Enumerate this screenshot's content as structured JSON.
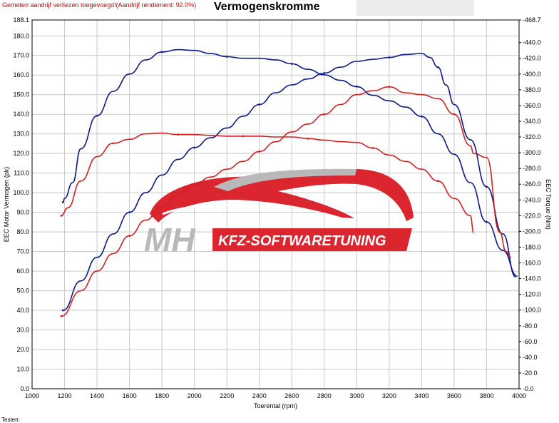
{
  "header": {
    "notice": "Gemeten aandrijf verliezen toegevoegd!(Aandrijf rendement: 92.0%)",
    "title": "Vermogenskromme"
  },
  "footer": {
    "text": "Testen:"
  },
  "logo": {
    "mark": "MH",
    "text": "KFZ-SOFTWARETUNING"
  },
  "colors": {
    "stock": "#d42020",
    "tuned": "#0a1a8c",
    "grid": "#c8c8c8",
    "logo_red": "#d8141e",
    "logo_grey": "#b4b4b4"
  },
  "chart_data": {
    "type": "line",
    "title": "Vermogenskromme",
    "xlabel": "Toerental (rpm)",
    "ylabel": "EEC Motor Vermogen (pk)",
    "y2label": "EEC Torque (Nm)",
    "xlim": [
      1000,
      4000
    ],
    "ylim": [
      0,
      188.1
    ],
    "y2lim": [
      0,
      468.7
    ],
    "grid": true,
    "x_ticks": [
      "1000",
      "1200",
      "1400",
      "1600",
      "1800",
      "2000",
      "2200",
      "2400",
      "2600",
      "2800",
      "3000",
      "3200",
      "3400",
      "3600",
      "3800",
      "4000"
    ],
    "y_ticks": [
      "0.0",
      "10.0",
      "20.0",
      "30.0",
      "40.0",
      "50.0",
      "60.0",
      "70.0",
      "80.0",
      "90.0",
      "100.0",
      "110.0",
      "120.0",
      "130.0",
      "140.0",
      "150.0",
      "160.0",
      "170.0",
      "180.0",
      "188.1"
    ],
    "y2_ticks": [
      "-0.0",
      "-20.0",
      "-40.0",
      "-60.0",
      "-80.0",
      "-100.0",
      "-120.0",
      "-140.0",
      "-160.0",
      "-180.0",
      "-200.0",
      "-220.0",
      "-240.0",
      "-260.0",
      "-280.0",
      "-300.0",
      "-320.0",
      "-340.0",
      "-360.0",
      "-380.0",
      "-400.0",
      "-420.0",
      "-440.0",
      "-468.7"
    ],
    "y2_tick_values": [
      0,
      20,
      40,
      60,
      80,
      100,
      120,
      140,
      160,
      180,
      200,
      220,
      240,
      260,
      280,
      300,
      320,
      340,
      360,
      380,
      400,
      420,
      440,
      468.7
    ],
    "series": [
      {
        "color": "#0a1a8c",
        "axis": "left",
        "points": [
          [
            1190,
            40
          ],
          [
            1300,
            55
          ],
          [
            1400,
            67
          ],
          [
            1500,
            79
          ],
          [
            1600,
            90
          ],
          [
            1700,
            100
          ],
          [
            1800,
            109
          ],
          [
            1900,
            117
          ],
          [
            2000,
            123
          ],
          [
            2100,
            128
          ],
          [
            2200,
            133
          ],
          [
            2300,
            139
          ],
          [
            2400,
            145
          ],
          [
            2500,
            151
          ],
          [
            2600,
            155
          ],
          [
            2700,
            158
          ],
          [
            2800,
            161
          ],
          [
            2900,
            164
          ],
          [
            3000,
            167
          ],
          [
            3100,
            168
          ],
          [
            3200,
            169
          ],
          [
            3300,
            170.5
          ],
          [
            3400,
            171
          ],
          [
            3450,
            169
          ],
          [
            3500,
            164
          ],
          [
            3550,
            155
          ],
          [
            3600,
            145
          ],
          [
            3700,
            127
          ],
          [
            3800,
            103
          ],
          [
            3900,
            79
          ],
          [
            3980,
            57
          ]
        ]
      },
      {
        "color": "#0a1a8c",
        "axis": "right",
        "points": [
          [
            1190,
            237
          ],
          [
            1200,
            242
          ],
          [
            1250,
            262
          ],
          [
            1300,
            305
          ],
          [
            1400,
            347
          ],
          [
            1500,
            378
          ],
          [
            1600,
            400
          ],
          [
            1700,
            418
          ],
          [
            1800,
            428
          ],
          [
            1900,
            431
          ],
          [
            2000,
            430
          ],
          [
            2100,
            426
          ],
          [
            2200,
            422
          ],
          [
            2300,
            420
          ],
          [
            2400,
            420
          ],
          [
            2500,
            418
          ],
          [
            2600,
            413
          ],
          [
            2700,
            406
          ],
          [
            2800,
            399
          ],
          [
            2900,
            392
          ],
          [
            3000,
            384
          ],
          [
            3100,
            373
          ],
          [
            3200,
            366
          ],
          [
            3300,
            358
          ],
          [
            3400,
            346
          ],
          [
            3500,
            324
          ],
          [
            3600,
            298
          ],
          [
            3700,
            262
          ],
          [
            3800,
            212
          ],
          [
            3900,
            176
          ],
          [
            3990,
            143
          ]
        ]
      },
      {
        "color": "#d42020",
        "axis": "left",
        "points": [
          [
            1180,
            37
          ],
          [
            1300,
            50
          ],
          [
            1400,
            60
          ],
          [
            1500,
            69
          ],
          [
            1600,
            78
          ],
          [
            1700,
            86
          ],
          [
            1800,
            93
          ],
          [
            1900,
            99
          ],
          [
            2000,
            104
          ],
          [
            2100,
            108
          ],
          [
            2200,
            112
          ],
          [
            2300,
            116
          ],
          [
            2400,
            121
          ],
          [
            2500,
            126
          ],
          [
            2600,
            131
          ],
          [
            2700,
            135
          ],
          [
            2800,
            140
          ],
          [
            2900,
            145
          ],
          [
            3000,
            150
          ],
          [
            3100,
            152
          ],
          [
            3200,
            154
          ],
          [
            3300,
            151
          ],
          [
            3400,
            150
          ],
          [
            3500,
            148
          ],
          [
            3600,
            140
          ],
          [
            3700,
            124
          ],
          [
            3720,
            120
          ],
          [
            3800,
            118
          ],
          [
            3880,
            80
          ],
          [
            3920,
            70
          ],
          [
            3950,
            67
          ]
        ]
      },
      {
        "color": "#d42020",
        "axis": "right",
        "points": [
          [
            1180,
            220
          ],
          [
            1220,
            230
          ],
          [
            1300,
            264
          ],
          [
            1400,
            295
          ],
          [
            1500,
            312
          ],
          [
            1600,
            317
          ],
          [
            1700,
            324
          ],
          [
            1800,
            325
          ],
          [
            1900,
            323
          ],
          [
            2000,
            323
          ],
          [
            2100,
            322
          ],
          [
            2200,
            321
          ],
          [
            2300,
            321
          ],
          [
            2400,
            321
          ],
          [
            2500,
            320
          ],
          [
            2600,
            320
          ],
          [
            2700,
            318
          ],
          [
            2800,
            316
          ],
          [
            2900,
            314
          ],
          [
            3000,
            313
          ],
          [
            3100,
            306
          ],
          [
            3200,
            297
          ],
          [
            3300,
            289
          ],
          [
            3400,
            279
          ],
          [
            3500,
            264
          ],
          [
            3600,
            242
          ],
          [
            3700,
            220
          ],
          [
            3720,
            198
          ]
        ]
      }
    ]
  }
}
